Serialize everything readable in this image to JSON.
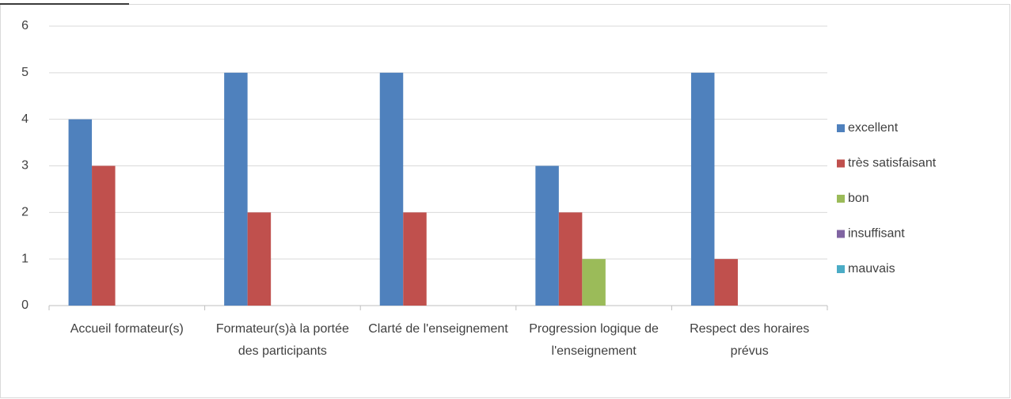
{
  "chart_data": {
    "type": "bar",
    "categories": [
      "Accueil formateur(s)",
      "Formateur(s)à la portée des participants",
      "Clarté de l'enseignement",
      "Progression logique de l'enseignement",
      "Respect des horaires prévus"
    ],
    "series": [
      {
        "name": "excellent",
        "color": "#4f81bd",
        "values": [
          4,
          5,
          5,
          3,
          5
        ]
      },
      {
        "name": "très satisfaisant",
        "color": "#c0504d",
        "values": [
          3,
          2,
          2,
          2,
          1
        ]
      },
      {
        "name": "bon",
        "color": "#9bbb59",
        "values": [
          0,
          0,
          0,
          1,
          0
        ]
      },
      {
        "name": "insuffisant",
        "color": "#8064a2",
        "values": [
          0,
          0,
          0,
          0,
          0
        ]
      },
      {
        "name": "mauvais",
        "color": "#4bacc6",
        "values": [
          0,
          0,
          0,
          0,
          0
        ]
      }
    ],
    "ylim": [
      0,
      6
    ],
    "yticks": [
      0,
      1,
      2,
      3,
      4,
      5,
      6
    ],
    "grid": true,
    "legend": "right"
  }
}
